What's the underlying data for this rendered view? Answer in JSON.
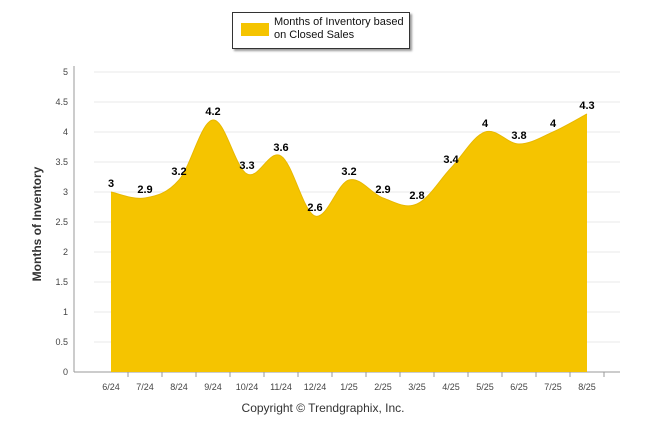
{
  "chart_data": {
    "type": "area",
    "legend": {
      "label": "Months of Inventory based on Closed Sales",
      "position": "top-center"
    },
    "ylabel": "Months of Inventory",
    "xlabel": "",
    "ylim": [
      0,
      5
    ],
    "yticks": [
      "0",
      "0.5",
      "1",
      "1.5",
      "2",
      "2.5",
      "3",
      "3.5",
      "4",
      "4.5",
      "5"
    ],
    "categories": [
      "6/24",
      "7/24",
      "8/24",
      "9/24",
      "10/24",
      "11/24",
      "12/24",
      "1/25",
      "2/25",
      "3/25",
      "4/25",
      "5/25",
      "6/25",
      "7/25",
      "8/25"
    ],
    "series": [
      {
        "name": "Months of Inventory based on Closed Sales",
        "values": [
          3,
          2.9,
          3.2,
          4.2,
          3.3,
          3.6,
          2.6,
          3.2,
          2.9,
          2.8,
          3.4,
          4,
          3.8,
          4,
          4.3
        ],
        "labels": [
          "3",
          "2.9",
          "3.2",
          "4.2",
          "3.3",
          "3.6",
          "2.6",
          "3.2",
          "2.9",
          "2.8",
          "3.4",
          "4",
          "3.8",
          "4",
          "4.3"
        ]
      }
    ],
    "grid": true,
    "colors": {
      "area": "#f5c400",
      "grid": "#e8e8e8",
      "axis": "#999999",
      "label": "#000000"
    }
  },
  "footer": {
    "copyright": "Copyright © Trendgraphix, Inc."
  }
}
